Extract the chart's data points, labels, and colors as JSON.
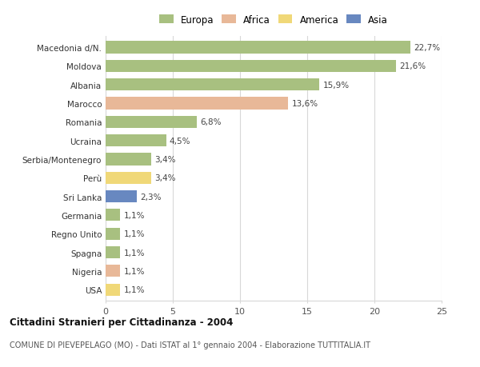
{
  "categories": [
    "Macedonia d/N.",
    "Moldova",
    "Albania",
    "Marocco",
    "Romania",
    "Ucraina",
    "Serbia/Montenegro",
    "Perù",
    "Sri Lanka",
    "Germania",
    "Regno Unito",
    "Spagna",
    "Nigeria",
    "USA"
  ],
  "values": [
    22.7,
    21.6,
    15.9,
    13.6,
    6.8,
    4.5,
    3.4,
    3.4,
    2.3,
    1.1,
    1.1,
    1.1,
    1.1,
    1.1
  ],
  "labels": [
    "22,7%",
    "21,6%",
    "15,9%",
    "13,6%",
    "6,8%",
    "4,5%",
    "3,4%",
    "3,4%",
    "2,3%",
    "1,1%",
    "1,1%",
    "1,1%",
    "1,1%",
    "1,1%"
  ],
  "colors": [
    "#a8c080",
    "#a8c080",
    "#a8c080",
    "#e8b898",
    "#a8c080",
    "#a8c080",
    "#a8c080",
    "#f0d878",
    "#6888c0",
    "#a8c080",
    "#a8c080",
    "#a8c080",
    "#e8b898",
    "#f0d878"
  ],
  "legend_labels": [
    "Europa",
    "Africa",
    "America",
    "Asia"
  ],
  "legend_colors": [
    "#a8c080",
    "#e8b898",
    "#f0d878",
    "#6888c0"
  ],
  "title_bold": "Cittadini Stranieri per Cittadinanza - 2004",
  "subtitle": "COMUNE DI PIEVEPELAGO (MO) - Dati ISTAT al 1° gennaio 2004 - Elaborazione TUTTITALIA.IT",
  "xlim": [
    0,
    25
  ],
  "xticks": [
    0,
    5,
    10,
    15,
    20,
    25
  ],
  "bg_color": "#ffffff",
  "grid_color": "#d8d8d8",
  "bar_height": 0.65
}
